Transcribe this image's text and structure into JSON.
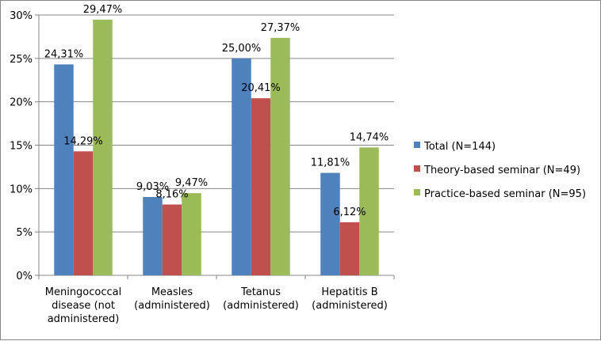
{
  "chart_data": {
    "type": "bar",
    "title": "",
    "xlabel": "",
    "ylabel": "",
    "ylim": [
      0,
      30
    ],
    "yticks": [
      "0%",
      "5%",
      "10%",
      "15%",
      "20%",
      "25%",
      "30%"
    ],
    "grid": true,
    "legend_position": "right",
    "categories": [
      [
        "Meningococcal",
        "disease (not",
        "administered)"
      ],
      [
        "Measles",
        "(administered)"
      ],
      [
        "Tetanus",
        "(administered)"
      ],
      [
        "Hepatitis B",
        "(administered)"
      ]
    ],
    "series": [
      {
        "name": "Total (N=144)",
        "color": "#4F81BD",
        "values": [
          24.31,
          9.03,
          25.0,
          11.81
        ],
        "labels": [
          "24,31%",
          "9,03%",
          "25,00%",
          "11,81%"
        ]
      },
      {
        "name": "Theory-based seminar (N=49)",
        "color": "#C0504D",
        "values": [
          14.29,
          8.16,
          20.41,
          6.12
        ],
        "labels": [
          "14,29%",
          "8,16%",
          "20,41%",
          "6,12%"
        ]
      },
      {
        "name": "Practice-based seminar (N=95)",
        "color": "#9BBB59",
        "values": [
          29.47,
          9.47,
          27.37,
          14.74
        ],
        "labels": [
          "29,47%",
          "9,47%",
          "27,37%",
          "14,74%"
        ]
      }
    ]
  }
}
